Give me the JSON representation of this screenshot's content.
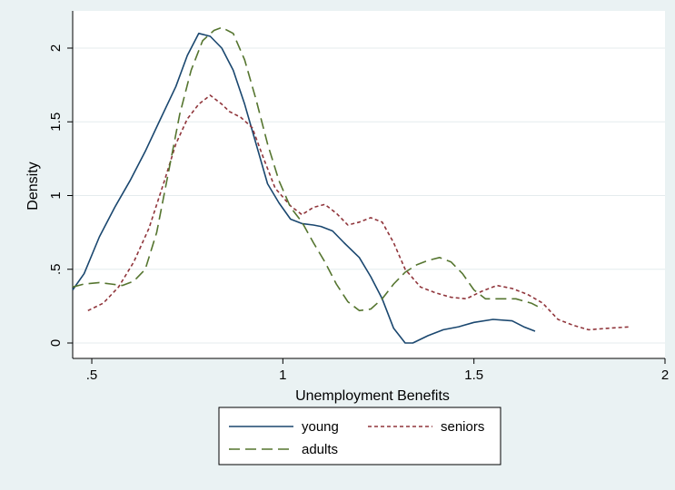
{
  "chart_data": {
    "type": "line",
    "xlabel": "Unemployment Benefits",
    "ylabel": "Density",
    "xlim": [
      0.45,
      2.0
    ],
    "ylim": [
      0,
      2.15
    ],
    "x_ticks": [
      0.5,
      1,
      1.5,
      2
    ],
    "x_tick_labels": [
      ".5",
      "1",
      "1.5",
      "2"
    ],
    "y_ticks": [
      0,
      0.5,
      1,
      1.5,
      2
    ],
    "y_tick_labels": [
      "0",
      ".5",
      "1",
      "1.5",
      "2"
    ],
    "grid": true,
    "legend_position": "bottom",
    "series": [
      {
        "name": "young",
        "color": "#1a476f",
        "dash": "solid",
        "points": [
          [
            0.45,
            0.36
          ],
          [
            0.48,
            0.47
          ],
          [
            0.52,
            0.72
          ],
          [
            0.56,
            0.92
          ],
          [
            0.6,
            1.1
          ],
          [
            0.64,
            1.3
          ],
          [
            0.68,
            1.52
          ],
          [
            0.72,
            1.74
          ],
          [
            0.75,
            1.95
          ],
          [
            0.78,
            2.1
          ],
          [
            0.81,
            2.08
          ],
          [
            0.84,
            2.0
          ],
          [
            0.87,
            1.85
          ],
          [
            0.9,
            1.62
          ],
          [
            0.93,
            1.35
          ],
          [
            0.96,
            1.08
          ],
          [
            0.99,
            0.95
          ],
          [
            1.02,
            0.84
          ],
          [
            1.05,
            0.81
          ],
          [
            1.08,
            0.8
          ],
          [
            1.1,
            0.79
          ],
          [
            1.13,
            0.76
          ],
          [
            1.16,
            0.68
          ],
          [
            1.2,
            0.58
          ],
          [
            1.23,
            0.45
          ],
          [
            1.26,
            0.3
          ],
          [
            1.29,
            0.1
          ],
          [
            1.32,
            0.0
          ],
          [
            1.34,
            0.0
          ],
          [
            1.38,
            0.05
          ],
          [
            1.42,
            0.09
          ],
          [
            1.46,
            0.11
          ],
          [
            1.5,
            0.14
          ],
          [
            1.55,
            0.16
          ],
          [
            1.6,
            0.15
          ],
          [
            1.63,
            0.11
          ],
          [
            1.66,
            0.08
          ]
        ]
      },
      {
        "name": "seniors",
        "color": "#90353b",
        "dash": "short",
        "points": [
          [
            0.49,
            0.22
          ],
          [
            0.53,
            0.27
          ],
          [
            0.57,
            0.38
          ],
          [
            0.61,
            0.55
          ],
          [
            0.65,
            0.78
          ],
          [
            0.69,
            1.1
          ],
          [
            0.72,
            1.35
          ],
          [
            0.75,
            1.52
          ],
          [
            0.78,
            1.62
          ],
          [
            0.81,
            1.68
          ],
          [
            0.84,
            1.62
          ],
          [
            0.86,
            1.57
          ],
          [
            0.89,
            1.53
          ],
          [
            0.92,
            1.46
          ],
          [
            0.95,
            1.25
          ],
          [
            0.98,
            1.05
          ],
          [
            1.02,
            0.93
          ],
          [
            1.05,
            0.87
          ],
          [
            1.08,
            0.92
          ],
          [
            1.11,
            0.94
          ],
          [
            1.14,
            0.88
          ],
          [
            1.17,
            0.8
          ],
          [
            1.2,
            0.82
          ],
          [
            1.23,
            0.85
          ],
          [
            1.26,
            0.82
          ],
          [
            1.29,
            0.68
          ],
          [
            1.32,
            0.5
          ],
          [
            1.36,
            0.38
          ],
          [
            1.4,
            0.34
          ],
          [
            1.44,
            0.31
          ],
          [
            1.48,
            0.3
          ],
          [
            1.52,
            0.35
          ],
          [
            1.56,
            0.39
          ],
          [
            1.6,
            0.37
          ],
          [
            1.64,
            0.33
          ],
          [
            1.68,
            0.27
          ],
          [
            1.72,
            0.16
          ],
          [
            1.76,
            0.12
          ],
          [
            1.8,
            0.09
          ],
          [
            1.85,
            0.1
          ],
          [
            1.91,
            0.11
          ]
        ]
      },
      {
        "name": "adults",
        "color": "#55752f",
        "dash": "long",
        "points": [
          [
            0.45,
            0.38
          ],
          [
            0.48,
            0.4
          ],
          [
            0.52,
            0.41
          ],
          [
            0.55,
            0.4
          ],
          [
            0.58,
            0.39
          ],
          [
            0.61,
            0.42
          ],
          [
            0.64,
            0.5
          ],
          [
            0.67,
            0.75
          ],
          [
            0.7,
            1.15
          ],
          [
            0.73,
            1.55
          ],
          [
            0.76,
            1.85
          ],
          [
            0.79,
            2.05
          ],
          [
            0.82,
            2.12
          ],
          [
            0.84,
            2.14
          ],
          [
            0.87,
            2.1
          ],
          [
            0.9,
            1.92
          ],
          [
            0.93,
            1.65
          ],
          [
            0.96,
            1.35
          ],
          [
            0.99,
            1.1
          ],
          [
            1.02,
            0.92
          ],
          [
            1.05,
            0.82
          ],
          [
            1.08,
            0.68
          ],
          [
            1.11,
            0.55
          ],
          [
            1.14,
            0.4
          ],
          [
            1.17,
            0.28
          ],
          [
            1.2,
            0.22
          ],
          [
            1.23,
            0.23
          ],
          [
            1.26,
            0.3
          ],
          [
            1.29,
            0.4
          ],
          [
            1.32,
            0.48
          ],
          [
            1.35,
            0.53
          ],
          [
            1.38,
            0.56
          ],
          [
            1.41,
            0.58
          ],
          [
            1.44,
            0.55
          ],
          [
            1.47,
            0.47
          ],
          [
            1.5,
            0.36
          ],
          [
            1.53,
            0.3
          ],
          [
            1.57,
            0.3
          ],
          [
            1.61,
            0.3
          ],
          [
            1.65,
            0.27
          ],
          [
            1.68,
            0.23
          ]
        ]
      }
    ]
  }
}
